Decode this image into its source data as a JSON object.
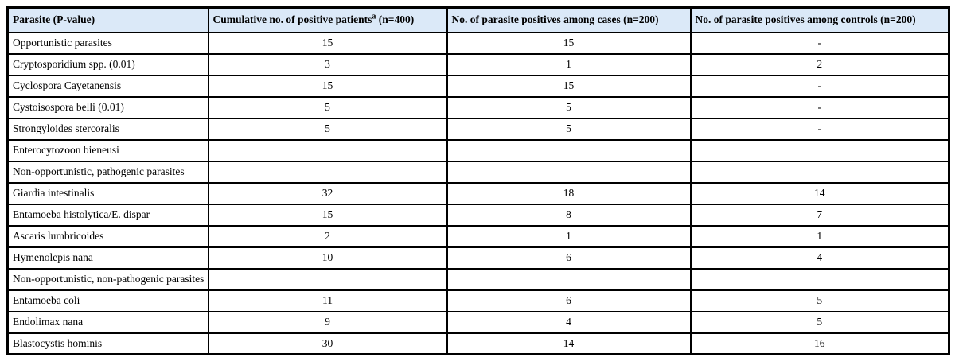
{
  "table": {
    "colors": {
      "header_bg": "#dbe9f8",
      "border": "#000000",
      "text": "#000000"
    },
    "columns": [
      {
        "label": "Parasite (P-value)"
      },
      {
        "label": "Cumulative no. of positive patients",
        "superscript": "a",
        "suffix": " (n=400)"
      },
      {
        "label": "No. of parasite positives among cases (n=200)"
      },
      {
        "label": "No. of parasite positives among controls (n=200)"
      }
    ],
    "rows": [
      {
        "parasite": "Opportunistic parasites",
        "cumulative": "15",
        "cases": "15",
        "controls": "-"
      },
      {
        "parasite": "Cryptosporidium spp. (0.01)",
        "cumulative": "3",
        "cases": "1",
        "controls": "2"
      },
      {
        "parasite": "Cyclospora Cayetanensis",
        "cumulative": "15",
        "cases": "15",
        "controls": "-"
      },
      {
        "parasite": "Cystoisospora belli (0.01)",
        "cumulative": "5",
        "cases": "5",
        "controls": "-"
      },
      {
        "parasite": "Strongyloides stercoralis",
        "cumulative": "5",
        "cases": "5",
        "controls": "-"
      },
      {
        "parasite": "Enterocytozoon bieneusi",
        "cumulative": "",
        "cases": "",
        "controls": ""
      },
      {
        "parasite": "Non-opportunistic, pathogenic parasites",
        "cumulative": "",
        "cases": "",
        "controls": ""
      },
      {
        "parasite": "Giardia intestinalis",
        "cumulative": "32",
        "cases": "18",
        "controls": "14"
      },
      {
        "parasite": "Entamoeba histolytica/E. dispar",
        "cumulative": "15",
        "cases": "8",
        "controls": "7"
      },
      {
        "parasite": "Ascaris lumbricoides",
        "cumulative": "2",
        "cases": "1",
        "controls": "1"
      },
      {
        "parasite": "Hymenolepis nana",
        "cumulative": "10",
        "cases": "6",
        "controls": "4"
      },
      {
        "parasite": "Non-opportunistic, non-pathogenic parasites",
        "cumulative": "",
        "cases": "",
        "controls": ""
      },
      {
        "parasite": "Entamoeba coli",
        "cumulative": "11",
        "cases": "6",
        "controls": "5"
      },
      {
        "parasite": "Endolimax nana",
        "cumulative": "9",
        "cases": "4",
        "controls": "5"
      },
      {
        "parasite": "Blastocystis hominis",
        "cumulative": "30",
        "cases": "14",
        "controls": "16"
      }
    ]
  }
}
